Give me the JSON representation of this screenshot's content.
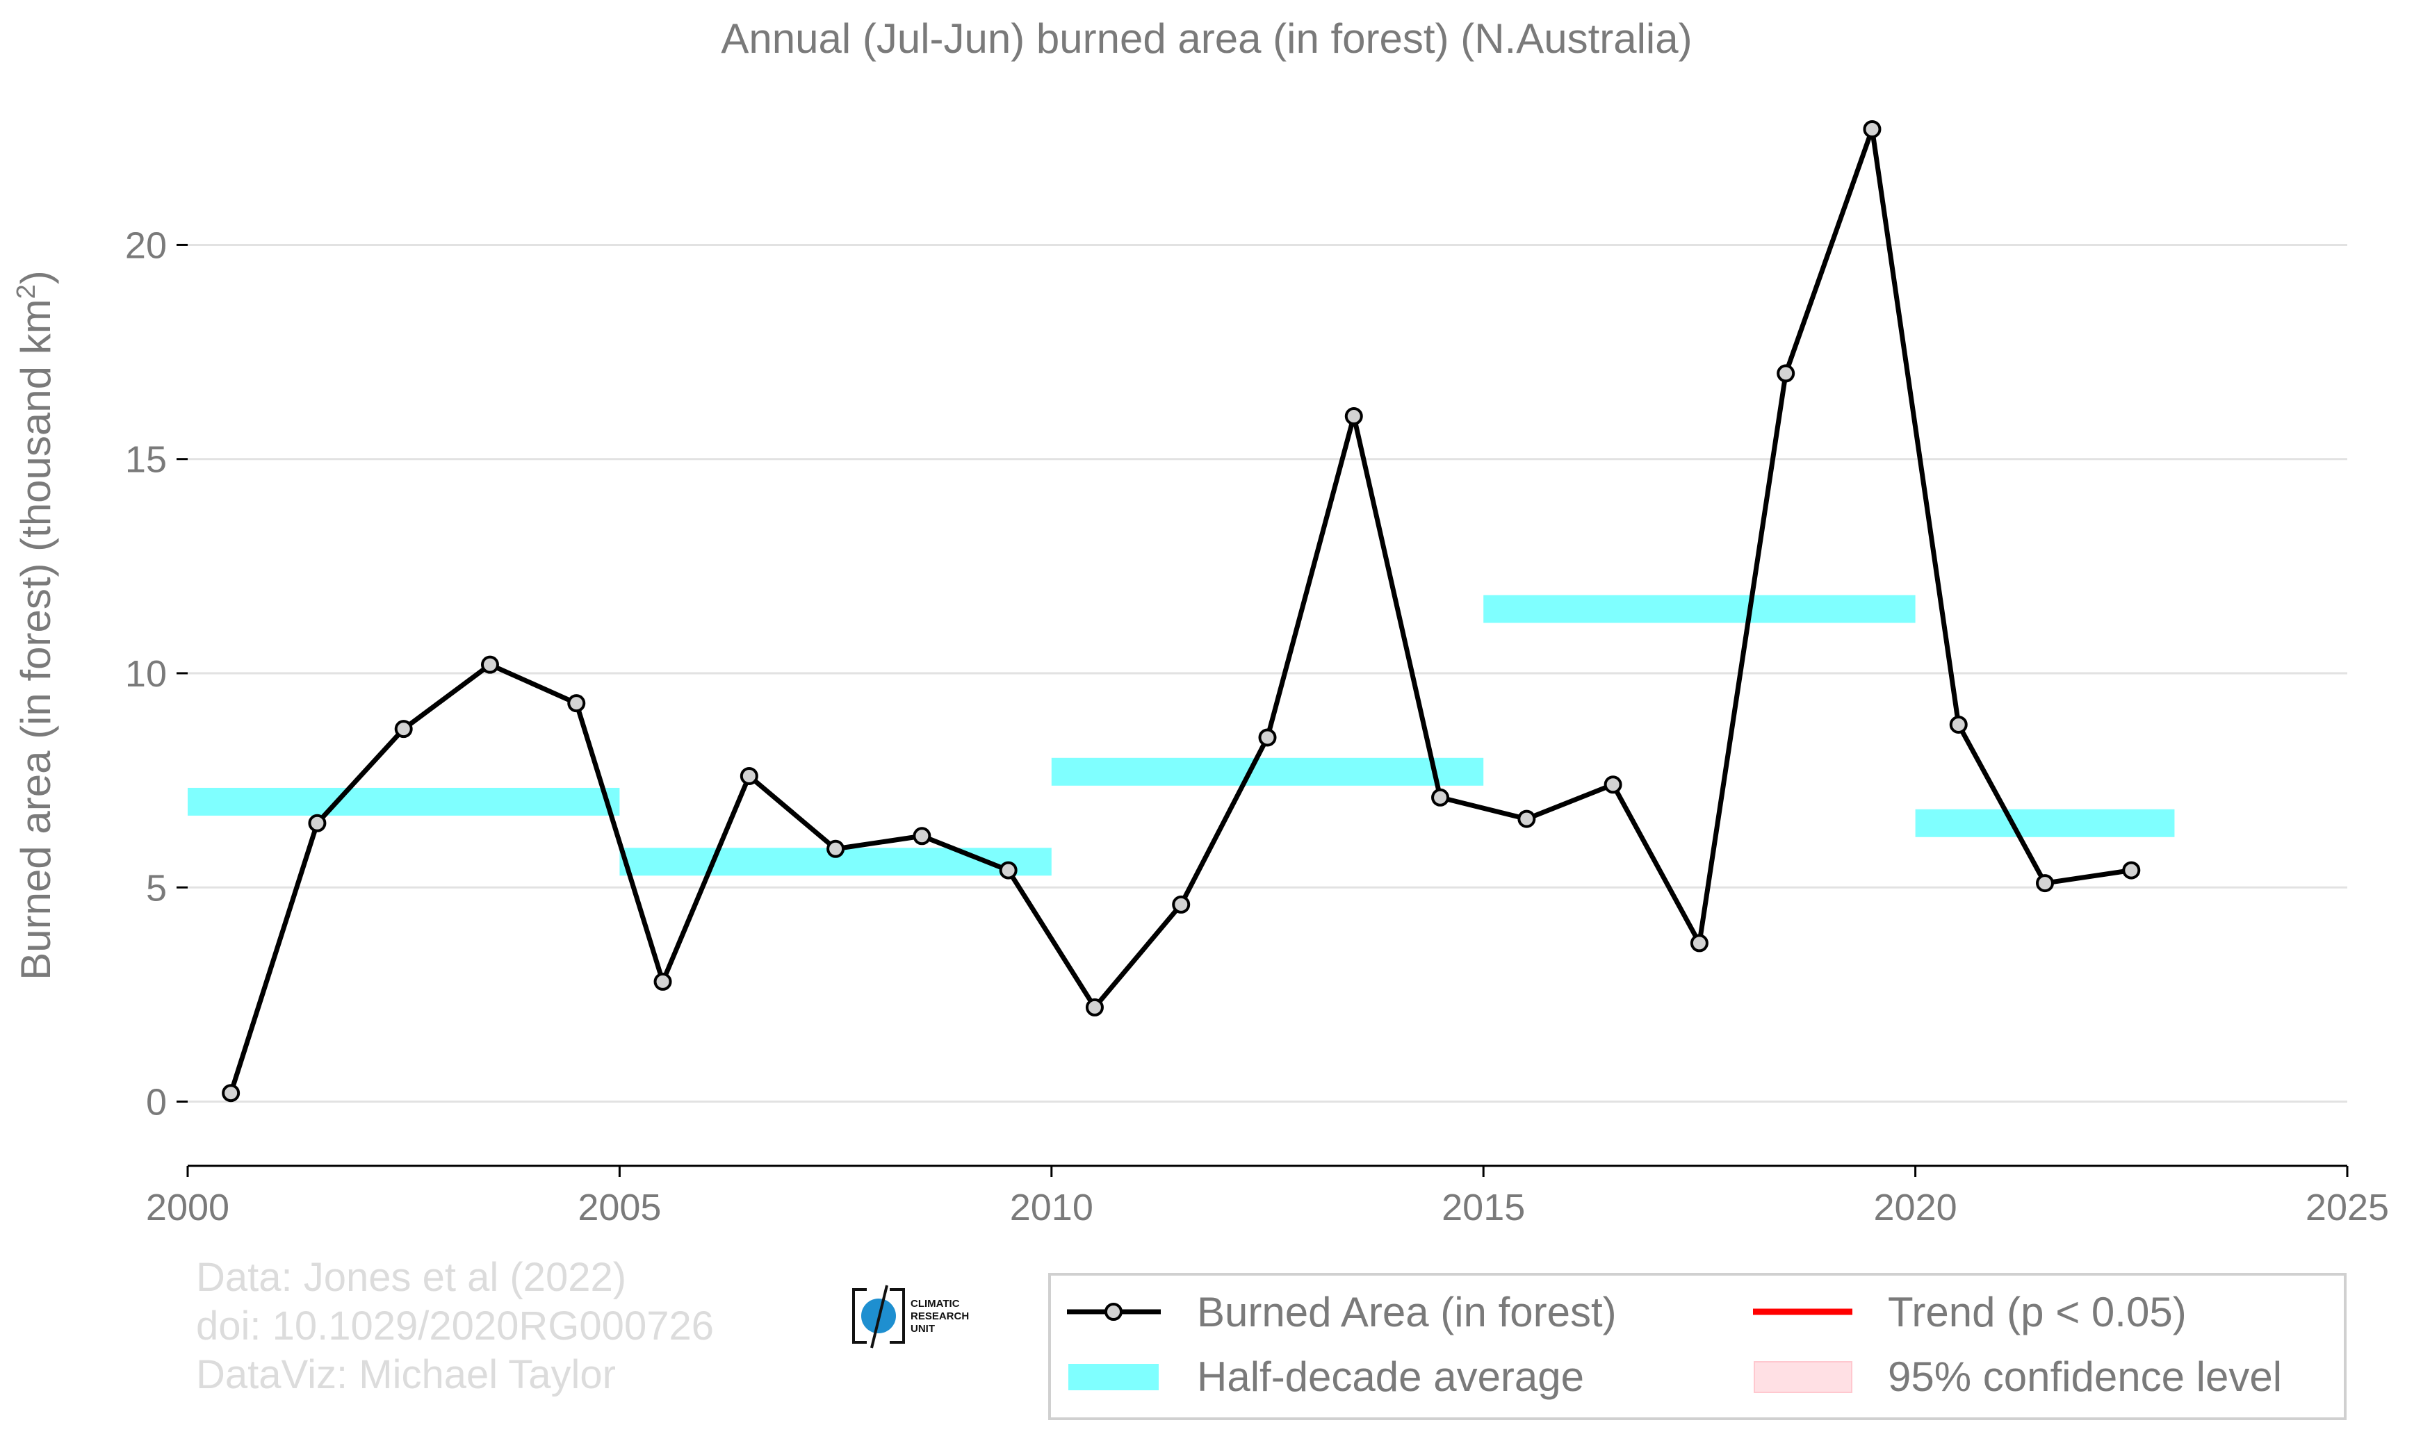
{
  "chart_data": {
    "type": "line",
    "title": "Annual (Jul-Jun) burned area (in forest) (N.Australia)",
    "ylabel_main": "Burned area (in forest) (thousand km",
    "ylabel_sup": "2",
    "ylabel_end": ")",
    "xlim": [
      2000,
      2025
    ],
    "ylim": [
      -1.5,
      24.5
    ],
    "xticks": [
      2000,
      2005,
      2010,
      2015,
      2020,
      2025
    ],
    "yticks": [
      0,
      5,
      10,
      15,
      20
    ],
    "grid": "horizontal",
    "legend_position": "bottom-right",
    "series": [
      {
        "name": "Burned Area (in forest)",
        "x": [
          2000.5,
          2001.5,
          2002.5,
          2003.5,
          2004.5,
          2005.5,
          2006.5,
          2007.5,
          2008.5,
          2009.5,
          2010.5,
          2011.5,
          2012.5,
          2013.5,
          2014.5,
          2015.5,
          2016.5,
          2017.5,
          2018.5,
          2019.5,
          2020.5,
          2021.5,
          2022.5
        ],
        "y": [
          0.2,
          6.5,
          8.7,
          10.2,
          9.3,
          2.8,
          7.6,
          5.9,
          6.2,
          5.4,
          2.2,
          4.6,
          8.5,
          16.0,
          7.1,
          6.6,
          7.4,
          3.7,
          17.0,
          22.7,
          8.8,
          5.1,
          5.4
        ],
        "color": "#000000",
        "marker_fill": "#d3d3d3"
      }
    ],
    "half_decade_averages": [
      {
        "x_start": 2000,
        "x_end": 2005,
        "y": 7.0
      },
      {
        "x_start": 2005,
        "x_end": 2010,
        "y": 5.6
      },
      {
        "x_start": 2010,
        "x_end": 2015,
        "y": 7.7
      },
      {
        "x_start": 2015,
        "x_end": 2020,
        "y": 11.5
      },
      {
        "x_start": 2020,
        "x_end": 2023,
        "y": 6.5
      }
    ],
    "average_color": "#7fffff",
    "legend": {
      "burned_area": "Burned Area (in forest)",
      "half_decade": "Half-decade average",
      "trend": "Trend (p < 0.05)",
      "confidence": "95% confidence level"
    },
    "legend_colors": {
      "trend": "#ff0000",
      "confidence": "#ffe0e4"
    },
    "credits": [
      "Data: Jones et al (2022)",
      "doi: 10.1029/2020RG000726",
      "DataViz: Michael Taylor"
    ],
    "logo_lines": [
      "CLIMATIC",
      "RESEARCH",
      "UNIT"
    ]
  }
}
